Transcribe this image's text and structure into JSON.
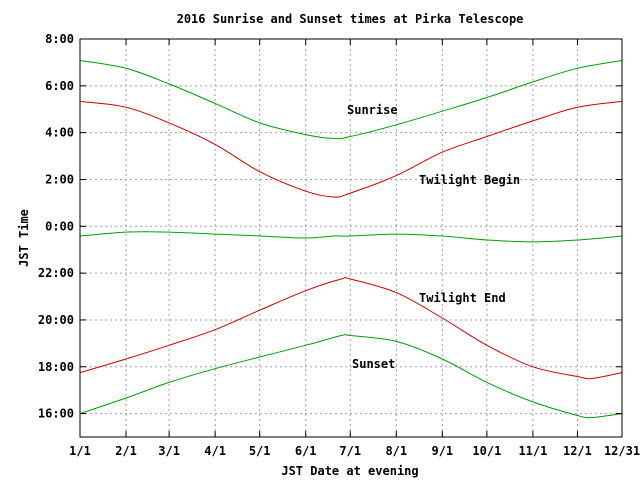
{
  "chart_data": {
    "type": "line",
    "title": "2016 Sunrise and Sunset times at Pirka Telescope",
    "xlabel": "JST Date at evening",
    "ylabel": "JST Time",
    "grid": true,
    "x_ticks": [
      "1/1",
      "2/1",
      "3/1",
      "4/1",
      "5/1",
      "6/1",
      "7/1",
      "8/1",
      "9/1",
      "10/1",
      "11/1",
      "12/1",
      "12/31"
    ],
    "y_ticks": [
      "16:00",
      "18:00",
      "20:00",
      "22:00",
      "0:00",
      "2:00",
      "4:00",
      "6:00",
      "8:00"
    ],
    "x_range": [
      "1/1",
      "12/31"
    ],
    "y_range": [
      "15:00",
      "8:00 (next morning)"
    ],
    "series": [
      {
        "name": "Sunrise",
        "color": "#00a000",
        "x": [
          "1/1",
          "2/1",
          "3/1",
          "4/1",
          "5/1",
          "6/1",
          "6/20",
          "7/1",
          "8/1",
          "9/1",
          "10/1",
          "11/1",
          "12/1",
          "12/31"
        ],
        "y": [
          "7:05",
          "6:45",
          "6:05",
          "5:15",
          "4:25",
          "3:55",
          "3:45",
          "3:50",
          "4:20",
          "4:55",
          "5:30",
          "6:10",
          "6:45",
          "7:05"
        ]
      },
      {
        "name": "Twilight Begin",
        "color": "#d00000",
        "x": [
          "1/1",
          "2/1",
          "3/1",
          "4/1",
          "5/1",
          "6/1",
          "6/20",
          "7/1",
          "8/1",
          "9/1",
          "10/1",
          "11/1",
          "12/1",
          "12/31"
        ],
        "y": [
          "5:20",
          "5:05",
          "4:25",
          "3:30",
          "2:20",
          "1:30",
          "1:15",
          "1:25",
          "2:10",
          "3:10",
          "3:50",
          "4:30",
          "5:05",
          "5:20"
        ]
      },
      {
        "name": "",
        "color": "#00a000",
        "x": [
          "1/1",
          "2/1",
          "3/1",
          "4/1",
          "5/1",
          "6/1",
          "6/20",
          "7/1",
          "8/1",
          "9/1",
          "10/1",
          "11/1",
          "12/1",
          "12/31"
        ],
        "y": [
          "23:35",
          "23:45",
          "23:45",
          "23:40",
          "23:35",
          "23:30",
          "23:35",
          "23:35",
          "23:40",
          "23:35",
          "23:25",
          "23:20",
          "23:25",
          "23:35"
        ]
      },
      {
        "name": "Twilight End",
        "color": "#d00000",
        "x": [
          "1/1",
          "2/1",
          "3/1",
          "4/1",
          "5/1",
          "6/1",
          "6/25",
          "7/1",
          "8/1",
          "9/1",
          "10/1",
          "11/1",
          "12/1",
          "12/11",
          "12/31"
        ],
        "y": [
          "17:45",
          "18:20",
          "18:55",
          "19:35",
          "20:25",
          "21:15",
          "21:45",
          "21:45",
          "21:10",
          "20:05",
          "18:55",
          "18:00",
          "17:35",
          "17:30",
          "17:45"
        ]
      },
      {
        "name": "Sunset",
        "color": "#00a000",
        "x": [
          "1/1",
          "2/1",
          "3/1",
          "4/1",
          "5/1",
          "6/1",
          "6/25",
          "7/1",
          "8/1",
          "9/1",
          "10/1",
          "11/1",
          "12/1",
          "12/11",
          "12/31"
        ],
        "y": [
          "16:00",
          "16:40",
          "17:20",
          "17:55",
          "18:25",
          "18:55",
          "19:20",
          "19:20",
          "19:05",
          "18:20",
          "17:20",
          "16:30",
          "15:55",
          "15:50",
          "16:00"
        ]
      }
    ]
  }
}
